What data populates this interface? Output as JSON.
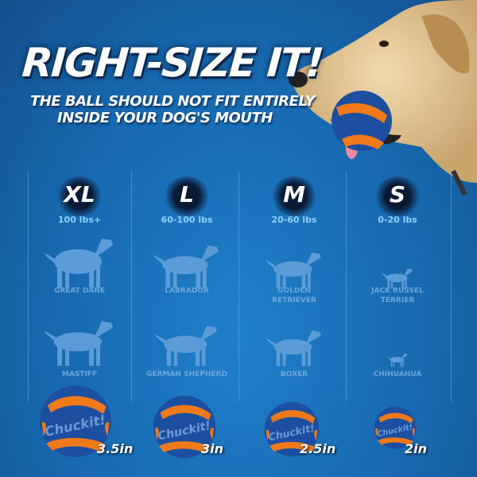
{
  "headline": "RIGHT-SIZE IT!",
  "subheadline": [
    "THE BALL SHOULD NOT FIT ENTIRELY",
    "INSIDE YOUR DOG'S MOUTH"
  ],
  "brand": "Chuckit!",
  "colors": {
    "background": "#1767ad",
    "ball_blue": "#1d4fa0",
    "ball_orange": "#f07a1a",
    "weight_text": "#8fd0ff",
    "breed_text": "#6aa6dc"
  },
  "columns": [
    {
      "size": "XL",
      "weight": "100 lbs+",
      "breeds": [
        "GREAT DANE",
        "MASTIFF"
      ],
      "ball_size": "3.5in"
    },
    {
      "size": "L",
      "weight": "60-100 lbs",
      "breeds": [
        "LABRADOR",
        "GERMAN SHEPHERD"
      ],
      "ball_size": "3in"
    },
    {
      "size": "M",
      "weight": "20-60 lbs",
      "breeds": [
        "GOLDEN RETRIEVER",
        "BOXER"
      ],
      "ball_size": "2.5in"
    },
    {
      "size": "S",
      "weight": "0-20 lbs",
      "breeds": [
        "JACK RUSSEL TERRIER",
        "CHIHUAHUA"
      ],
      "ball_size": "2in"
    }
  ]
}
